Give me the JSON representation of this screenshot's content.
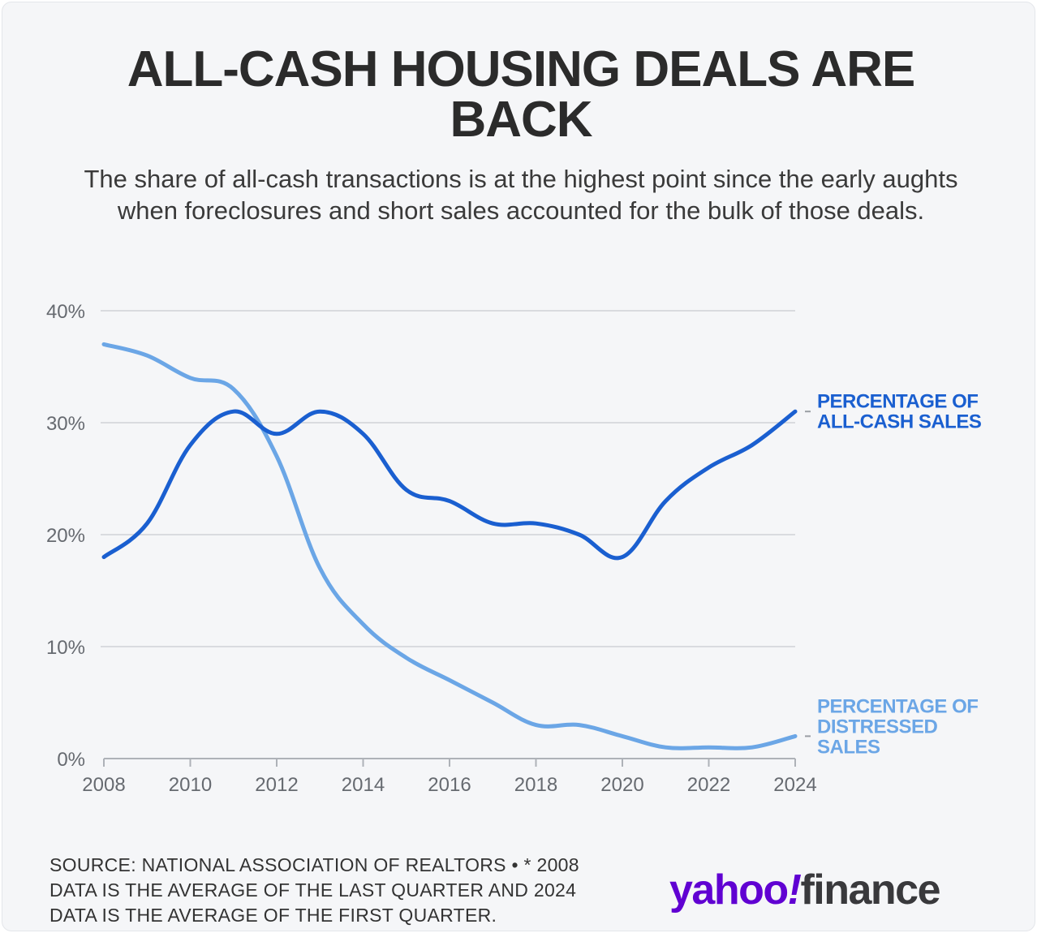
{
  "title": "ALL-CASH HOUSING DEALS ARE BACK",
  "subtitle": "The share of all-cash transactions is at the highest point since the early aughts when foreclosures and short sales accounted for the bulk of those deals.",
  "footer": {
    "source": "SOURCE: NATIONAL ASSOCIATION OF REALTORS • * 2008 DATA IS THE AVERAGE OF THE LAST QUARTER AND 2024 DATA IS THE AVERAGE OF THE FIRST QUARTER."
  },
  "logo": {
    "text_yahoo": "yahoo",
    "text_bang": "!",
    "text_finance": "finance",
    "color_yahoo": "#6001d2",
    "color_finance": "#39393c"
  },
  "chart_data": {
    "type": "line",
    "title": "ALL-CASH HOUSING DEALS ARE BACK",
    "xlabel": "",
    "ylabel": "",
    "x": [
      2008,
      2009,
      2010,
      2011,
      2012,
      2013,
      2014,
      2015,
      2016,
      2017,
      2018,
      2019,
      2020,
      2021,
      2022,
      2023,
      2024
    ],
    "xlim": [
      2008,
      2024
    ],
    "ylim": [
      0,
      40
    ],
    "xticks": [
      2008,
      2010,
      2012,
      2014,
      2016,
      2018,
      2020,
      2022,
      2024
    ],
    "yticks": [
      0,
      10,
      20,
      30,
      40
    ],
    "ytick_labels": [
      "0%",
      "10%",
      "20%",
      "30%",
      "40%"
    ],
    "grid": true,
    "series": [
      {
        "name": "PERCENTAGE OF ALL-CASH SALES",
        "label_lines": [
          "PERCENTAGE OF",
          "ALL-CASH SALES"
        ],
        "color": "#1a5fd0",
        "values": [
          18,
          21,
          28,
          31,
          29,
          31,
          29,
          24,
          23,
          21,
          21,
          20,
          18,
          23,
          26,
          28,
          31
        ]
      },
      {
        "name": "PERCENTAGE OF DISTRESSED SALES",
        "label_lines": [
          "PERCENTAGE OF",
          "DISTRESSED",
          "SALES"
        ],
        "color": "#6ba6e6",
        "values": [
          37,
          36,
          34,
          33,
          27,
          17,
          12,
          9,
          7,
          5,
          3,
          3,
          2,
          1,
          1,
          1,
          2
        ]
      }
    ]
  }
}
